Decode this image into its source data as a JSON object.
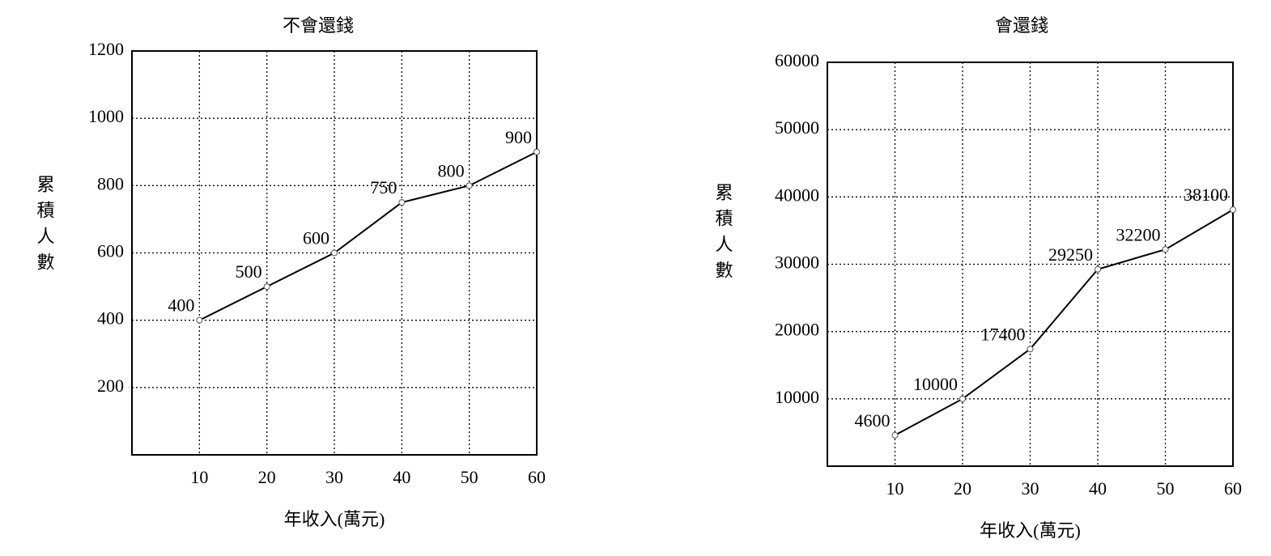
{
  "chart_data": [
    {
      "type": "line",
      "title": "不會還錢",
      "x_label": "年收入(萬元)",
      "y_label": "累積人數",
      "x": [
        10,
        20,
        30,
        40,
        50,
        60
      ],
      "values": [
        400,
        500,
        600,
        750,
        800,
        900
      ],
      "color": "#000000",
      "xlim": [
        0,
        60
      ],
      "xticks": [
        10,
        20,
        30,
        40,
        50,
        60
      ],
      "ylim": [
        0,
        1200
      ],
      "yticks": [
        200,
        400,
        600,
        800,
        1000,
        1200
      ],
      "grid": true
    },
    {
      "type": "line",
      "title": "會還錢",
      "x_label": "年收入(萬元)",
      "y_label": "累積人數",
      "x": [
        10,
        20,
        30,
        40,
        50,
        60
      ],
      "values": [
        4600,
        10000,
        17400,
        29250,
        32200,
        38100
      ],
      "color": "#000000",
      "xlim": [
        0,
        60
      ],
      "xticks": [
        10,
        20,
        30,
        40,
        50,
        60
      ],
      "ylim": [
        0,
        60000
      ],
      "yticks": [
        10000,
        20000,
        30000,
        40000,
        50000,
        60000
      ],
      "grid": true
    }
  ]
}
